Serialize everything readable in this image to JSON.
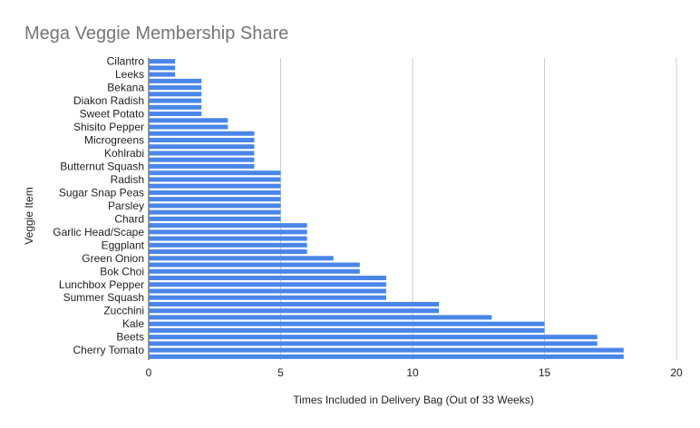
{
  "chart_data": {
    "type": "bar",
    "orientation": "horizontal",
    "title": "Mega Veggie Membership Share",
    "xlabel": "Times Included in Delivery Bag (Out of 33 Weeks)",
    "ylabel": "Veggie Item",
    "xlim": [
      0,
      20
    ],
    "x_ticks": [
      "0",
      "5",
      "10",
      "15",
      "20"
    ],
    "grid": true,
    "legend": "none",
    "bar_color": "#4a86e8",
    "categories": [
      "Cilantro",
      "",
      "Leeks",
      "",
      "Bekana",
      "",
      "Diakon Radish",
      "",
      "Sweet Potato",
      "",
      "Shisito Pepper",
      "",
      "Microgreens",
      "",
      "Kohlrabi",
      "",
      "Butternut Squash",
      "",
      "Radish",
      "",
      "Sugar Snap Peas",
      "",
      "Parsley",
      "",
      "Chard",
      "",
      "Garlic Head/Scape",
      "",
      "Eggplant",
      "",
      "Green Onion",
      "",
      "Bok Choi",
      "",
      "Lunchbox Pepper",
      "",
      "Summer Squash",
      "",
      "Zucchini",
      "",
      "Kale",
      "",
      "Beets",
      "",
      "Cherry Tomato",
      ""
    ],
    "values": [
      1,
      1,
      1,
      2,
      2,
      2,
      2,
      2,
      2,
      3,
      3,
      4,
      4,
      4,
      4,
      4,
      4,
      5,
      5,
      5,
      5,
      5,
      5,
      5,
      5,
      6,
      6,
      6,
      6,
      6,
      7,
      8,
      8,
      9,
      9,
      9,
      9,
      11,
      11,
      13,
      15,
      15,
      17,
      17,
      18,
      18
    ]
  }
}
